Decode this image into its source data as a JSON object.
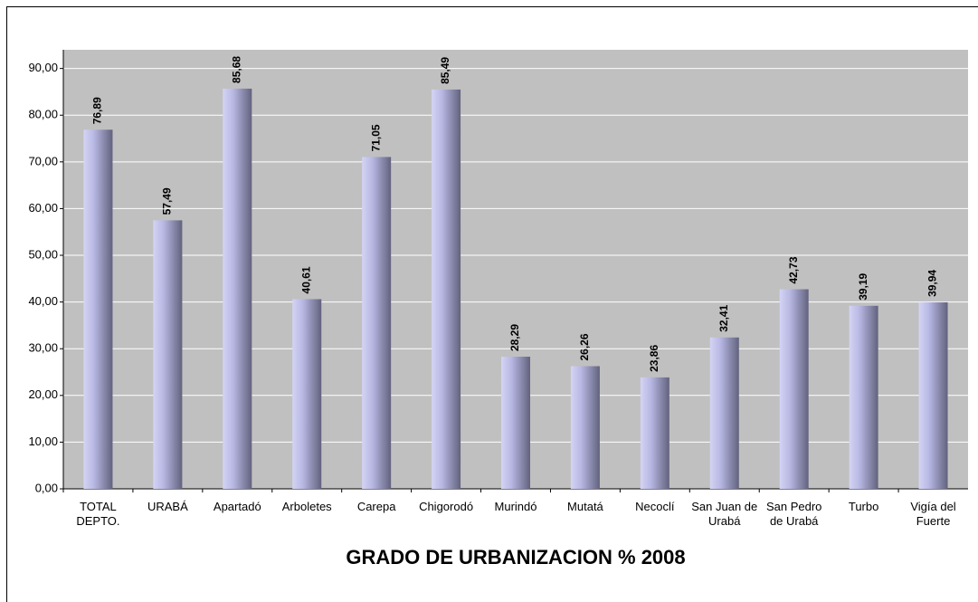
{
  "chart_data": {
    "type": "bar",
    "title": "GRADO DE URBANIZACION % 2008",
    "categories": [
      "TOTAL DEPTO.",
      "URABÁ",
      "Apartadó",
      "Arboletes",
      "Carepa",
      "Chigorodó",
      "Murindó",
      "Mutatá",
      "Necoclí",
      "San Juan de Urabá",
      "San Pedro de Urabá",
      "Turbo",
      "Vigía del Fuerte"
    ],
    "values": [
      76.89,
      57.49,
      85.68,
      40.61,
      71.05,
      85.49,
      28.29,
      26.26,
      23.86,
      32.41,
      42.73,
      39.19,
      39.94
    ],
    "value_labels": [
      "76,89",
      "57,49",
      "85,68",
      "40,61",
      "71,05",
      "85,49",
      "28,29",
      "26,26",
      "23,86",
      "32,41",
      "42,73",
      "39,19",
      "39,94"
    ],
    "color": "#9a9ac8",
    "ylim": [
      0,
      94
    ],
    "yticks": [
      {
        "value": 0,
        "label": "0,00"
      },
      {
        "value": 10,
        "label": "10,00"
      },
      {
        "value": 20,
        "label": "20,00"
      },
      {
        "value": 30,
        "label": "30,00"
      },
      {
        "value": 40,
        "label": "40,00"
      },
      {
        "value": 50,
        "label": "50,00"
      },
      {
        "value": 60,
        "label": "60,00"
      },
      {
        "value": 70,
        "label": "70,00"
      },
      {
        "value": 80,
        "label": "80,00"
      },
      {
        "value": 90,
        "label": "90,00"
      }
    ],
    "grid": true
  }
}
